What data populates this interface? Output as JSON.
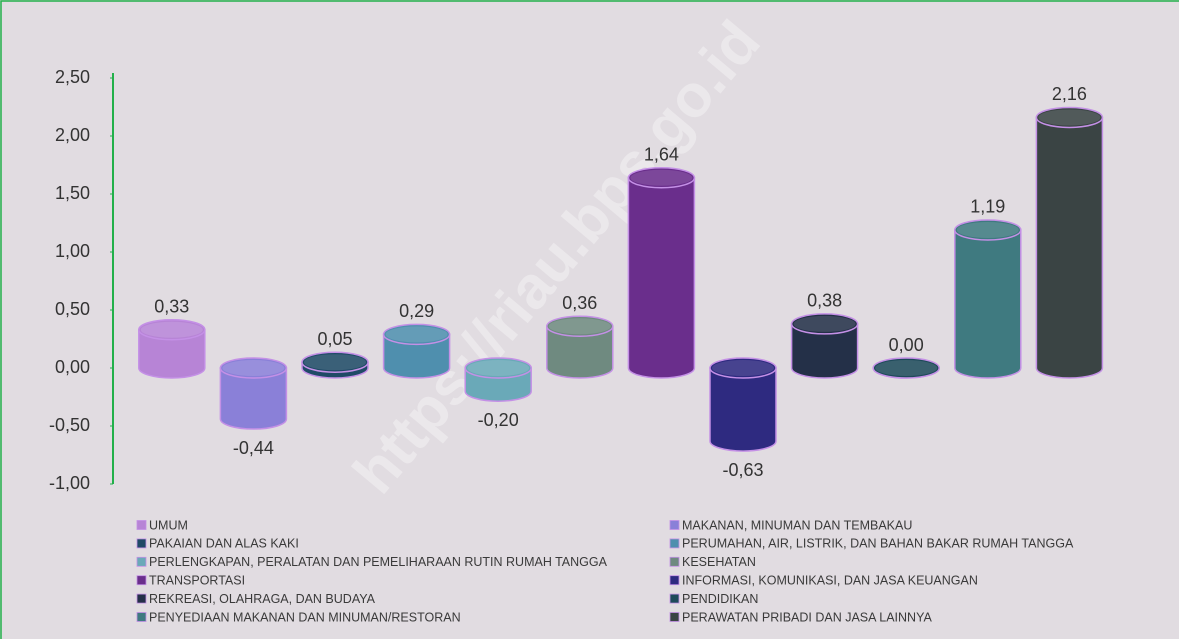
{
  "chart_data": {
    "type": "bar",
    "watermark": "https://riau.bps.go.id",
    "categories": [
      "UMUM",
      "MAKANAN, MINUMAN DAN TEMBAKAU",
      "PAKAIAN DAN ALAS KAKI",
      "PERUMAHAN, AIR, LISTRIK, DAN BAHAN BAKAR RUMAH TANGGA",
      "PERLENGKAPAN, PERALATAN DAN PEMELIHARAAN RUTIN RUMAH TANGGA",
      "KESEHATAN",
      "TRANSPORTASI",
      "INFORMASI, KOMUNIKASI, DAN JASA KEUANGAN",
      "REKREASI, OLAHRAGA, DAN BUDAYA",
      "PENDIDIKAN",
      "PENYEDIAAN MAKANAN DAN MINUMAN/RESTORAN",
      "PERAWATAN PRIBADI DAN JASA LAINNYA"
    ],
    "values": [
      0.33,
      -0.44,
      0.05,
      0.29,
      -0.2,
      0.36,
      1.64,
      -0.63,
      0.38,
      0.0,
      1.19,
      2.16
    ],
    "value_labels": [
      "0,33",
      "-0,44",
      "0,05",
      "0,29",
      "-0,20",
      "0,36",
      "1,64",
      "-0,63",
      "0,38",
      "0,00",
      "1,19",
      "2,16"
    ],
    "colors": [
      "#b784d6",
      "#8a80d8",
      "#1f4a66",
      "#4f8fae",
      "#6aa9b8",
      "#6f8a80",
      "#6a2e8c",
      "#2e2a80",
      "#243048",
      "#1e4a5a",
      "#3f7a80",
      "#3a4444"
    ],
    "ylim": [
      -1.0,
      2.5
    ],
    "yticks": [
      {
        "value": -1.0,
        "label": "-1,00"
      },
      {
        "value": -0.5,
        "label": "-0,50"
      },
      {
        "value": 0.0,
        "label": "0,00"
      },
      {
        "value": 0.5,
        "label": "0,50"
      },
      {
        "value": 1.0,
        "label": "1,00"
      },
      {
        "value": 1.5,
        "label": "1,50"
      },
      {
        "value": 2.0,
        "label": "2,00"
      },
      {
        "value": 2.5,
        "label": "2,50"
      }
    ],
    "grid": false,
    "legend": "bottom"
  }
}
